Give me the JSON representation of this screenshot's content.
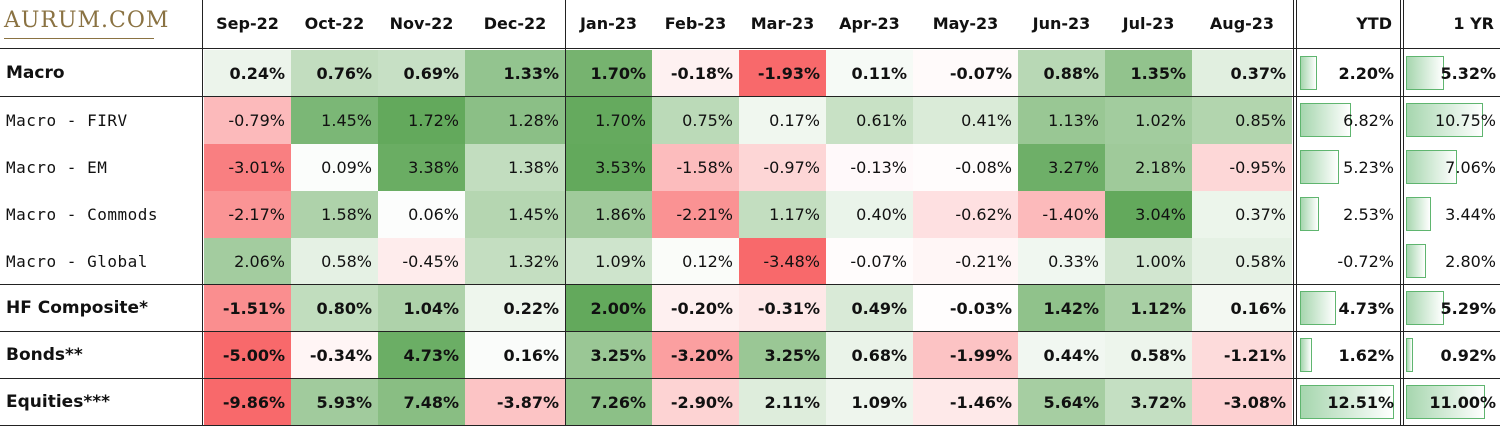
{
  "logo": {
    "text": "AURUM.COM"
  },
  "chart_data": {
    "type": "table",
    "months": [
      "Sep-22",
      "Oct-22",
      "Nov-22",
      "Dec-22",
      "Jan-23",
      "Feb-23",
      "Mar-23",
      "Apr-23",
      "May-23",
      "Jun-23",
      "Jul-23",
      "Aug-23"
    ],
    "summary_headers": [
      "YTD",
      "1 YR"
    ],
    "rows": [
      {
        "label": "Macro",
        "style": "bold",
        "values": [
          "0.24%",
          "0.76%",
          "0.69%",
          "1.33%",
          "1.70%",
          "-0.18%",
          "-1.93%",
          "0.11%",
          "-0.07%",
          "0.88%",
          "1.35%",
          "0.37%"
        ],
        "nums": [
          0.24,
          0.76,
          0.69,
          1.33,
          1.7,
          -0.18,
          -1.93,
          0.11,
          -0.07,
          0.88,
          1.35,
          0.37
        ],
        "ytd": "2.20%",
        "ytd_num": 2.2,
        "one_yr": "5.32%",
        "one_yr_num": 5.32
      },
      {
        "label": "Macro - FIRV",
        "style": "sub",
        "values": [
          "-0.79%",
          "1.45%",
          "1.72%",
          "1.28%",
          "1.70%",
          "0.75%",
          "0.17%",
          "0.61%",
          "0.41%",
          "1.13%",
          "1.02%",
          "0.85%"
        ],
        "nums": [
          -0.79,
          1.45,
          1.72,
          1.28,
          1.7,
          0.75,
          0.17,
          0.61,
          0.41,
          1.13,
          1.02,
          0.85
        ],
        "ytd": "6.82%",
        "ytd_num": 6.82,
        "one_yr": "10.75%",
        "one_yr_num": 10.75
      },
      {
        "label": "Macro - EM",
        "style": "sub",
        "values": [
          "-3.01%",
          "0.09%",
          "3.38%",
          "1.38%",
          "3.53%",
          "-1.58%",
          "-0.97%",
          "-0.13%",
          "-0.08%",
          "3.27%",
          "2.18%",
          "-0.95%"
        ],
        "nums": [
          -3.01,
          0.09,
          3.38,
          1.38,
          3.53,
          -1.58,
          -0.97,
          -0.13,
          -0.08,
          3.27,
          2.18,
          -0.95
        ],
        "ytd": "5.23%",
        "ytd_num": 5.23,
        "one_yr": "7.06%",
        "one_yr_num": 7.06
      },
      {
        "label": "Macro - Commods",
        "style": "sub",
        "values": [
          "-2.17%",
          "1.58%",
          "0.06%",
          "1.45%",
          "1.86%",
          "-2.21%",
          "1.17%",
          "0.40%",
          "-0.62%",
          "-1.40%",
          "3.04%",
          "0.37%"
        ],
        "nums": [
          -2.17,
          1.58,
          0.06,
          1.45,
          1.86,
          -2.21,
          1.17,
          0.4,
          -0.62,
          -1.4,
          3.04,
          0.37
        ],
        "ytd": "2.53%",
        "ytd_num": 2.53,
        "one_yr": "3.44%",
        "one_yr_num": 3.44
      },
      {
        "label": "Macro - Global",
        "style": "sub",
        "values": [
          "2.06%",
          "0.58%",
          "-0.45%",
          "1.32%",
          "1.09%",
          "0.12%",
          "-3.48%",
          "-0.07%",
          "-0.21%",
          "0.33%",
          "1.00%",
          "0.58%"
        ],
        "nums": [
          2.06,
          0.58,
          -0.45,
          1.32,
          1.09,
          0.12,
          -3.48,
          -0.07,
          -0.21,
          0.33,
          1.0,
          0.58
        ],
        "ytd": "-0.72%",
        "ytd_num": -0.72,
        "one_yr": "2.80%",
        "one_yr_num": 2.8
      },
      {
        "label": "HF Composite*",
        "style": "bold",
        "values": [
          "-1.51%",
          "0.80%",
          "1.04%",
          "0.22%",
          "2.00%",
          "-0.20%",
          "-0.31%",
          "0.49%",
          "-0.03%",
          "1.42%",
          "1.12%",
          "0.16%"
        ],
        "nums": [
          -1.51,
          0.8,
          1.04,
          0.22,
          2.0,
          -0.2,
          -0.31,
          0.49,
          -0.03,
          1.42,
          1.12,
          0.16
        ],
        "ytd": "4.73%",
        "ytd_num": 4.73,
        "one_yr": "5.29%",
        "one_yr_num": 5.29
      },
      {
        "label": "Bonds**",
        "style": "bold",
        "values": [
          "-5.00%",
          "-0.34%",
          "4.73%",
          "0.16%",
          "3.25%",
          "-3.20%",
          "3.25%",
          "0.68%",
          "-1.99%",
          "0.44%",
          "0.58%",
          "-1.21%"
        ],
        "nums": [
          -5.0,
          -0.34,
          4.73,
          0.16,
          3.25,
          -3.2,
          3.25,
          0.68,
          -1.99,
          0.44,
          0.58,
          -1.21
        ],
        "ytd": "1.62%",
        "ytd_num": 1.62,
        "one_yr": "0.92%",
        "one_yr_num": 0.92
      },
      {
        "label": "Equities***",
        "style": "bold",
        "values": [
          "-9.86%",
          "5.93%",
          "7.48%",
          "-3.87%",
          "7.26%",
          "-2.90%",
          "2.11%",
          "1.09%",
          "-1.46%",
          "5.64%",
          "3.72%",
          "-3.08%"
        ],
        "nums": [
          -9.86,
          5.93,
          7.48,
          -3.87,
          7.26,
          -2.9,
          2.11,
          1.09,
          -1.46,
          5.64,
          3.72,
          -3.08
        ],
        "ytd": "12.51%",
        "ytd_num": 12.51,
        "one_yr": "11.00%",
        "one_yr_num": 11.0
      }
    ],
    "colors": {
      "positive": "#63a95c",
      "negative": "#f8696b",
      "neutral": "#ffffff",
      "bar_border": "#5fb56f",
      "logo": "#8a7242"
    }
  }
}
